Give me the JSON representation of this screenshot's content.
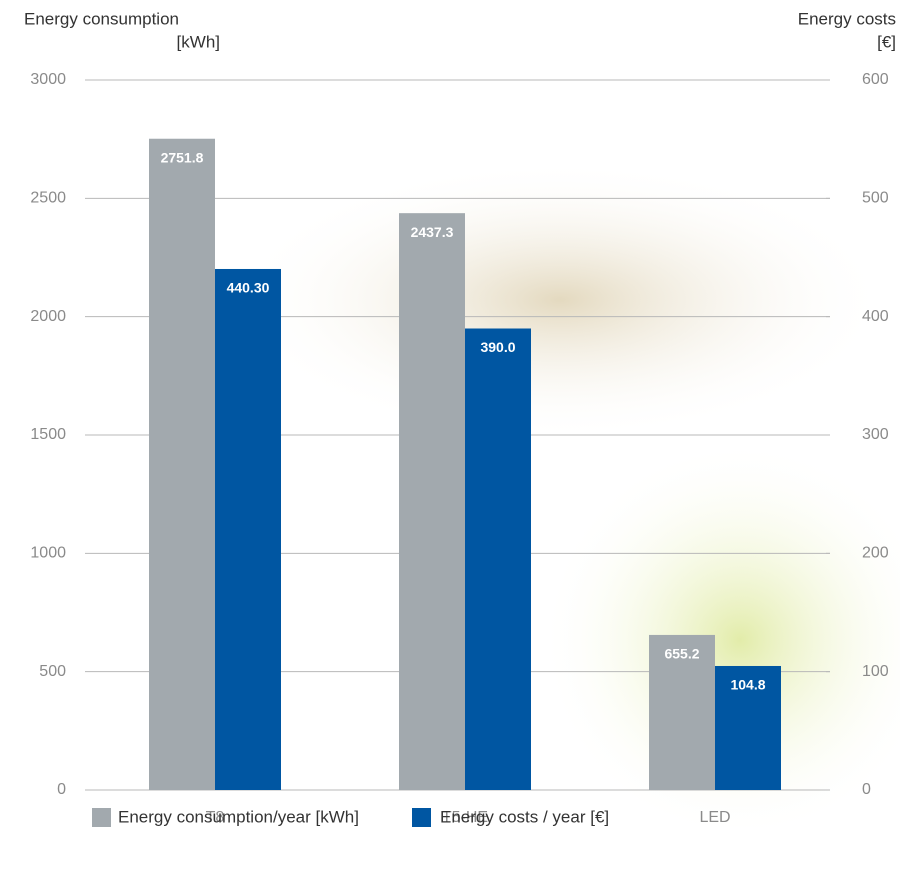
{
  "chart_data": {
    "type": "bar",
    "y_label": [
      "Energy consumption",
      "[kWh]"
    ],
    "y2_label": [
      "Energy costs",
      "[€]"
    ],
    "categories": [
      "T8",
      "T5-HE",
      "LED"
    ],
    "series": [
      {
        "name": "Energy consumption/year [kWh]",
        "color": "#a2a9ae",
        "values": [
          2751.8,
          2437.3,
          655.2
        ]
      },
      {
        "name": "Energy costs / year [€]",
        "color": "#0056a2",
        "axis": "y2",
        "values": [
          440.3,
          390,
          104.8
        ],
        "value_labels": [
          "440.30",
          "390.0",
          "104.8"
        ]
      }
    ],
    "ylim": [
      0,
      3000
    ],
    "yticks": [
      0,
      500,
      1000,
      1500,
      2000,
      2500,
      3000
    ],
    "y2lim": [
      0,
      600
    ],
    "y2ticks": [
      0,
      100,
      200,
      300,
      400,
      500,
      600
    ],
    "grid": true
  }
}
